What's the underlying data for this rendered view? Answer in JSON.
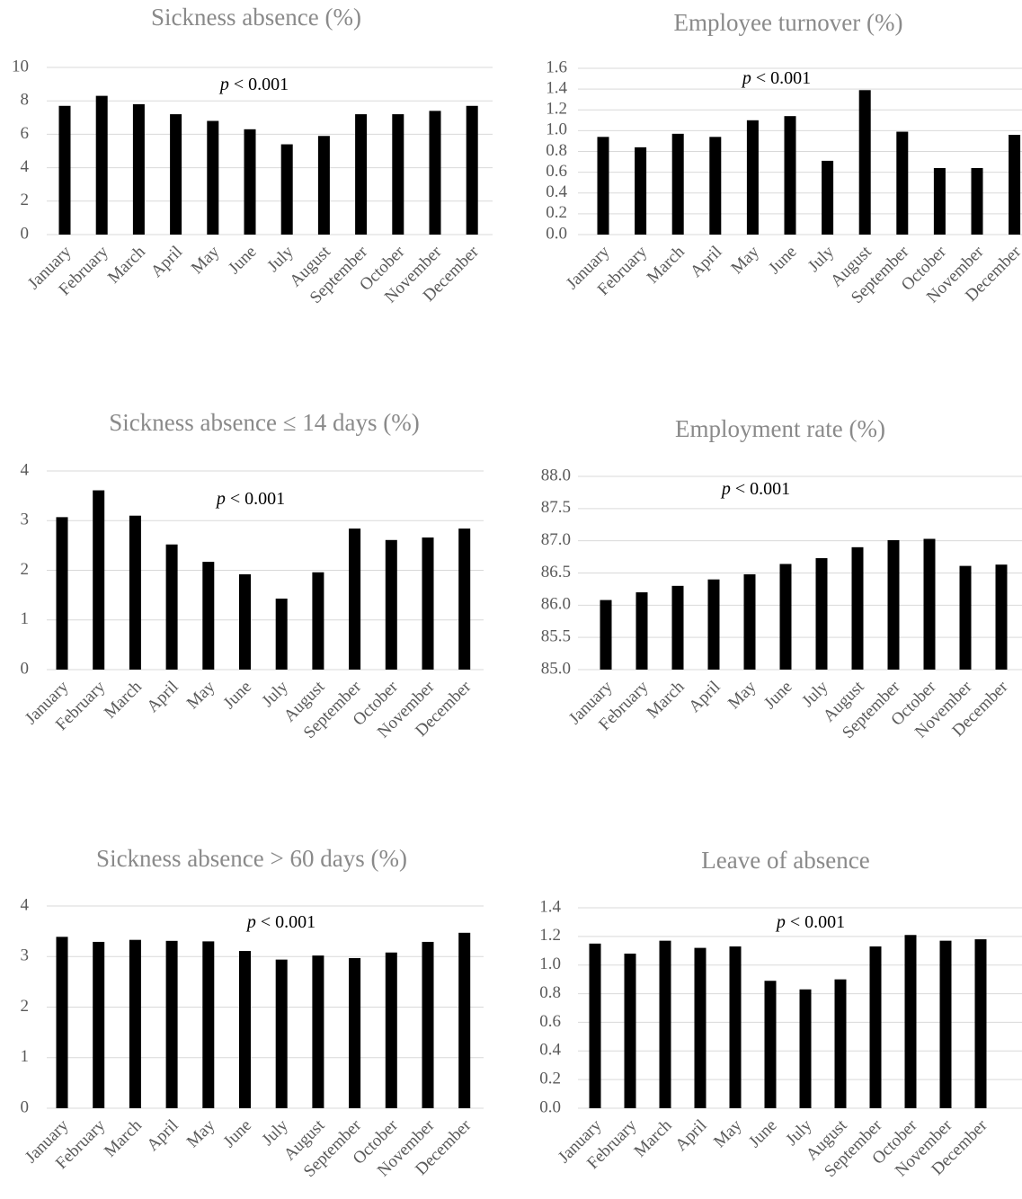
{
  "chart_data": [
    {
      "type": "bar",
      "title": "Sickness absence (%)",
      "annotation": "p < 0.001",
      "categories": [
        "January",
        "February",
        "March",
        "April",
        "May",
        "June",
        "July",
        "August",
        "September",
        "October",
        "November",
        "December"
      ],
      "values": [
        7.7,
        8.3,
        7.8,
        7.2,
        6.8,
        6.3,
        5.4,
        5.9,
        7.2,
        7.2,
        7.4,
        7.7
      ],
      "ylim": [
        0,
        10
      ],
      "yticks": [
        "0",
        "2",
        "4",
        "6",
        "8",
        "10"
      ],
      "grid": true
    },
    {
      "type": "bar",
      "title": "Employee turnover (%)",
      "annotation": "p < 0.001",
      "categories": [
        "January",
        "February",
        "March",
        "April",
        "May",
        "June",
        "July",
        "August",
        "September",
        "October",
        "November",
        "December"
      ],
      "values": [
        0.94,
        0.84,
        0.97,
        0.94,
        1.1,
        1.14,
        0.71,
        1.39,
        0.99,
        0.64,
        0.64,
        0.96
      ],
      "ylim": [
        0,
        1.6
      ],
      "yticks": [
        "0.0",
        "0.2",
        "0.4",
        "0.6",
        "0.8",
        "1.0",
        "1.2",
        "1.4",
        "1.6"
      ],
      "grid": true
    },
    {
      "type": "bar",
      "title": "Sickness absence ≤ 14 days (%)",
      "annotation": "p < 0.001",
      "categories": [
        "January",
        "February",
        "March",
        "April",
        "May",
        "June",
        "July",
        "August",
        "September",
        "October",
        "November",
        "December"
      ],
      "values": [
        3.07,
        3.61,
        3.1,
        2.52,
        2.17,
        1.92,
        1.43,
        1.96,
        2.84,
        2.61,
        2.66,
        2.84
      ],
      "ylim": [
        0,
        4
      ],
      "yticks": [
        "0",
        "1",
        "2",
        "3",
        "4"
      ],
      "grid": true
    },
    {
      "type": "bar",
      "title": "Employment rate (%)",
      "annotation": "p < 0.001",
      "categories": [
        "January",
        "February",
        "March",
        "April",
        "May",
        "June",
        "July",
        "August",
        "September",
        "October",
        "November",
        "December"
      ],
      "values": [
        86.08,
        86.2,
        86.3,
        86.4,
        86.48,
        86.64,
        86.73,
        86.9,
        87.01,
        87.03,
        86.61,
        86.63
      ],
      "ylim": [
        85,
        88
      ],
      "yticks": [
        "85.0",
        "85.5",
        "86.0",
        "86.5",
        "87.0",
        "87.5",
        "88.0"
      ],
      "grid": true
    },
    {
      "type": "bar",
      "title": "Sickness absence > 60 days (%)",
      "annotation": "p < 0.001",
      "categories": [
        "January",
        "February",
        "March",
        "April",
        "May",
        "June",
        "July",
        "August",
        "September",
        "October",
        "November",
        "December"
      ],
      "values": [
        3.39,
        3.29,
        3.33,
        3.31,
        3.3,
        3.11,
        2.94,
        3.02,
        2.97,
        3.08,
        3.29,
        3.47
      ],
      "ylim": [
        0,
        4
      ],
      "yticks": [
        "0",
        "1",
        "2",
        "3",
        "4"
      ],
      "grid": true
    },
    {
      "type": "bar",
      "title": "Leave of absence",
      "annotation": "p < 0.001",
      "categories": [
        "January",
        "February",
        "March",
        "April",
        "May",
        "June",
        "July",
        "August",
        "September",
        "October",
        "November",
        "December"
      ],
      "values": [
        1.15,
        1.08,
        1.17,
        1.12,
        1.13,
        0.89,
        0.83,
        0.9,
        1.13,
        1.21,
        1.17,
        1.18
      ],
      "ylim": [
        0,
        1.4
      ],
      "yticks": [
        "0.0",
        "0.2",
        "0.4",
        "0.6",
        "0.8",
        "1.0",
        "1.2",
        "1.4"
      ],
      "grid": true
    }
  ],
  "colors": {
    "bar": "#000000",
    "title": "#8a8a8a",
    "tick_label": "#5a5a5a",
    "grid": "#d9d9d9",
    "annotation": "#000000"
  }
}
